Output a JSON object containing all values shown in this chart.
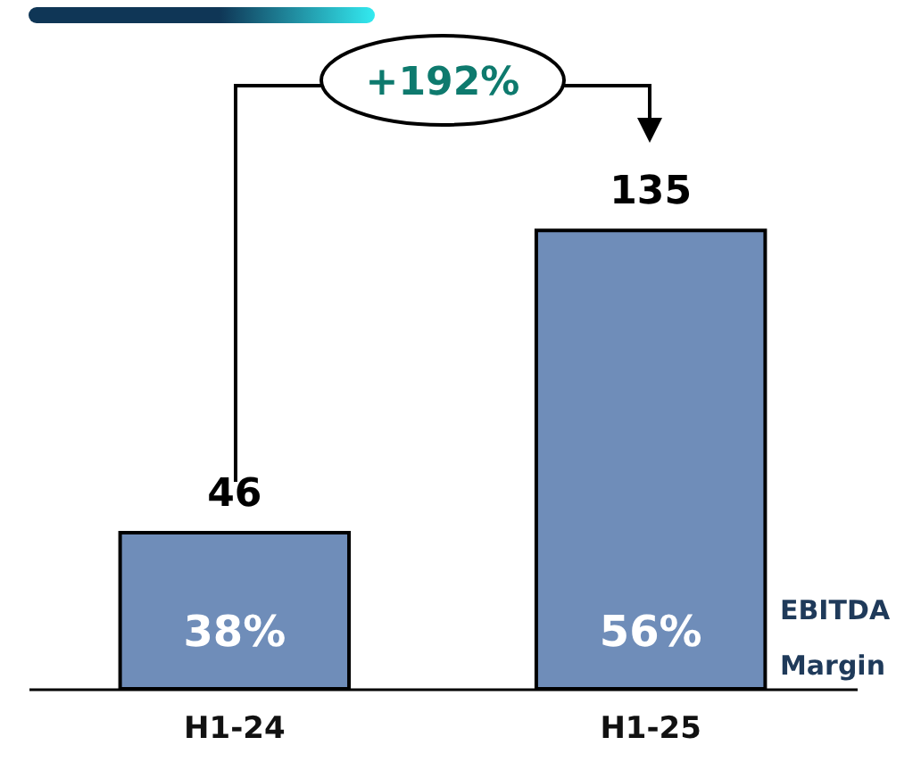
{
  "chart_data": {
    "type": "bar",
    "categories": [
      "H1-24",
      "H1-25"
    ],
    "values": [
      46,
      135
    ],
    "color": "#6f8db9",
    "data_labels": true,
    "annotations": [
      "+192%",
      "38%",
      "56%",
      "EBITDA Margin"
    ]
  }
}
